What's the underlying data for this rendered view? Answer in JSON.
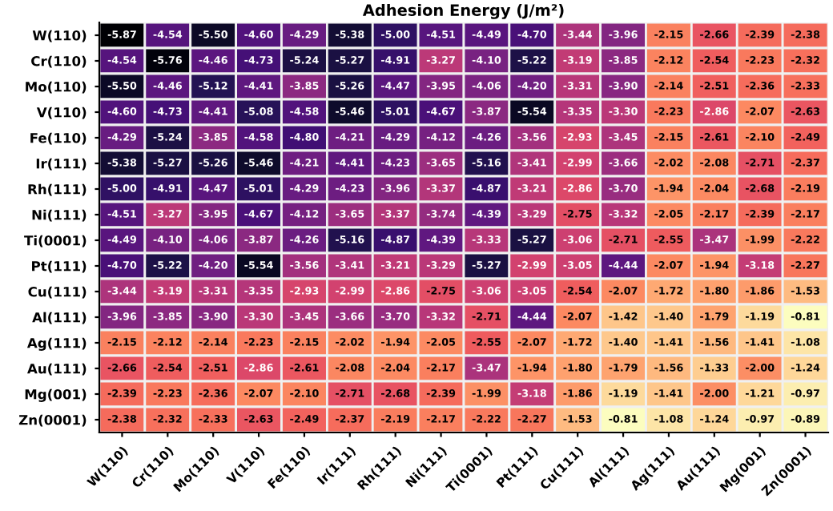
{
  "chart_data": {
    "type": "heatmap",
    "title": "Adhesion Energy (J/m²)",
    "categories": [
      "W(110)",
      "Cr(110)",
      "Mo(110)",
      "V(110)",
      "Fe(110)",
      "Ir(111)",
      "Rh(111)",
      "Ni(111)",
      "Ti(0001)",
      "Pt(111)",
      "Cu(111)",
      "Al(111)",
      "Ag(111)",
      "Au(111)",
      "Mg(001)",
      "Zn(0001)"
    ],
    "y_categories": [
      "W(110)",
      "Cr(110)",
      "Mo(110)",
      "V(110)",
      "Fe(110)",
      "Ir(111)",
      "Rh(111)",
      "Ni(111)",
      "Ti(0001)",
      "Pt(111)",
      "Cu(111)",
      "Al(111)",
      "Ag(111)",
      "Au(111)",
      "Mg(001)",
      "Zn(0001)"
    ],
    "cells": [
      [
        -5.87,
        -4.54,
        -5.5,
        -4.6,
        -4.29,
        -5.38,
        -5.0,
        -4.51,
        -4.49,
        -4.7,
        -3.44,
        -3.96,
        -2.15,
        -2.66,
        -2.39,
        -2.38
      ],
      [
        -4.54,
        -5.76,
        -4.46,
        -4.73,
        -5.24,
        -5.27,
        -4.91,
        -3.27,
        -4.1,
        -5.22,
        -3.19,
        -3.85,
        -2.12,
        -2.54,
        -2.23,
        -2.32
      ],
      [
        -5.5,
        -4.46,
        -5.12,
        -4.41,
        -3.85,
        -5.26,
        -4.47,
        -3.95,
        -4.06,
        -4.2,
        -3.31,
        -3.9,
        -2.14,
        -2.51,
        -2.36,
        -2.33
      ],
      [
        -4.6,
        -4.73,
        -4.41,
        -5.08,
        -4.58,
        -5.46,
        -5.01,
        -4.67,
        -3.87,
        -5.54,
        -3.35,
        -3.3,
        -2.23,
        -2.86,
        -2.07,
        -2.63
      ],
      [
        -4.29,
        -5.24,
        -3.85,
        -4.58,
        -4.8,
        -4.21,
        -4.29,
        -4.12,
        -4.26,
        -3.56,
        -2.93,
        -3.45,
        -2.15,
        -2.61,
        -2.1,
        -2.49
      ],
      [
        -5.38,
        -5.27,
        -5.26,
        -5.46,
        -4.21,
        -4.41,
        -4.23,
        -3.65,
        -5.16,
        -3.41,
        -2.99,
        -3.66,
        -2.02,
        -2.08,
        -2.71,
        -2.37
      ],
      [
        -5.0,
        -4.91,
        -4.47,
        -5.01,
        -4.29,
        -4.23,
        -3.96,
        -3.37,
        -4.87,
        -3.21,
        -2.86,
        -3.7,
        -1.94,
        -2.04,
        -2.68,
        -2.19
      ],
      [
        -4.51,
        -3.27,
        -3.95,
        -4.67,
        -4.12,
        -3.65,
        -3.37,
        -3.74,
        -4.39,
        -3.29,
        -2.75,
        -3.32,
        -2.05,
        -2.17,
        -2.39,
        -2.17
      ],
      [
        -4.49,
        -4.1,
        -4.06,
        -3.87,
        -4.26,
        -5.16,
        -4.87,
        -4.39,
        -3.33,
        -5.27,
        -3.06,
        -2.71,
        -2.55,
        -3.47,
        -1.99,
        -2.22
      ],
      [
        -4.7,
        -5.22,
        -4.2,
        -5.54,
        -3.56,
        -3.41,
        -3.21,
        -3.29,
        -5.27,
        -2.99,
        -3.05,
        -4.44,
        -2.07,
        -1.94,
        -3.18,
        -2.27
      ],
      [
        -3.44,
        -3.19,
        -3.31,
        -3.35,
        -2.93,
        -2.99,
        -2.86,
        -2.75,
        -3.06,
        -3.05,
        -2.54,
        -2.07,
        -1.72,
        -1.8,
        -1.86,
        -1.53
      ],
      [
        -3.96,
        -3.85,
        -3.9,
        -3.3,
        -3.45,
        -3.66,
        -3.7,
        -3.32,
        -2.71,
        -4.44,
        -2.07,
        -1.42,
        -1.4,
        -1.79,
        -1.19,
        -0.81
      ],
      [
        -2.15,
        -2.12,
        -2.14,
        -2.23,
        -2.15,
        -2.02,
        -1.94,
        -2.05,
        -2.55,
        -2.07,
        -1.72,
        -1.4,
        -1.41,
        -1.56,
        -1.41,
        -1.08
      ],
      [
        -2.66,
        -2.54,
        -2.51,
        -2.86,
        -2.61,
        -2.08,
        -2.04,
        -2.17,
        -3.47,
        -1.94,
        -1.8,
        -1.79,
        -1.56,
        -1.33,
        -2.0,
        -1.24
      ],
      [
        -2.39,
        -2.23,
        -2.36,
        -2.07,
        -2.1,
        -2.71,
        -2.68,
        -2.39,
        -1.99,
        -3.18,
        -1.86,
        -1.19,
        -1.41,
        -2.0,
        -1.21,
        -0.97
      ],
      [
        -2.38,
        -2.32,
        -2.33,
        -2.63,
        -2.49,
        -2.37,
        -2.19,
        -2.17,
        -2.22,
        -2.27,
        -1.53,
        -0.81,
        -1.08,
        -1.24,
        -0.97,
        -0.89
      ]
    ],
    "cell_labels": [
      [
        "-5.87",
        "-4.54",
        "-5.50",
        "-4.60",
        "-4.29",
        "-5.38",
        "-5.00",
        "-4.51",
        "-4.49",
        "-4.70",
        "-3.44",
        "-3.96",
        "-2.15",
        "-2.66",
        "-2.39",
        "-2.38"
      ],
      [
        "-4.54",
        "-5.76",
        "-4.46",
        "-4.73",
        "-5.24",
        "-5.27",
        "-4.91",
        "-3.27",
        "-4.10",
        "-5.22",
        "-3.19",
        "-3.85",
        "-2.12",
        "-2.54",
        "-2.23",
        "-2.32"
      ],
      [
        "-5.50",
        "-4.46",
        "-5.12",
        "-4.41",
        "-3.85",
        "-5.26",
        "-4.47",
        "-3.95",
        "-4.06",
        "-4.20",
        "-3.31",
        "-3.90",
        "-2.14",
        "-2.51",
        "-2.36",
        "-2.33"
      ],
      [
        "-4.60",
        "-4.73",
        "-4.41",
        "-5.08",
        "-4.58",
        "-5.46",
        "-5.01",
        "-4.67",
        "-3.87",
        "-5.54",
        "-3.35",
        "-3.30",
        "-2.23",
        "-2.86",
        "-2.07",
        "-2.63"
      ],
      [
        "-4.29",
        "-5.24",
        "-3.85",
        "-4.58",
        "-4.80",
        "-4.21",
        "-4.29",
        "-4.12",
        "-4.26",
        "-3.56",
        "-2.93",
        "-3.45",
        "-2.15",
        "-2.61",
        "-2.10",
        "-2.49"
      ],
      [
        "-5.38",
        "-5.27",
        "-5.26",
        "-5.46",
        "-4.21",
        "-4.41",
        "-4.23",
        "-3.65",
        "-5.16",
        "-3.41",
        "-2.99",
        "-3.66",
        "-2.02",
        "-2.08",
        "-2.71",
        "-2.37"
      ],
      [
        "-5.00",
        "-4.91",
        "-4.47",
        "-5.01",
        "-4.29",
        "-4.23",
        "-3.96",
        "-3.37",
        "-4.87",
        "-3.21",
        "-2.86",
        "-3.70",
        "-1.94",
        "-2.04",
        "-2.68",
        "-2.19"
      ],
      [
        "-4.51",
        "-3.27",
        "-3.95",
        "-4.67",
        "-4.12",
        "-3.65",
        "-3.37",
        "-3.74",
        "-4.39",
        "-3.29",
        "-2.75",
        "-3.32",
        "-2.05",
        "-2.17",
        "-2.39",
        "-2.17"
      ],
      [
        "-4.49",
        "-4.10",
        "-4.06",
        "-3.87",
        "-4.26",
        "-5.16",
        "-4.87",
        "-4.39",
        "-3.33",
        "-5.27",
        "-3.06",
        "-2.71",
        "-2.55",
        "-3.47",
        "-1.99",
        "-2.22"
      ],
      [
        "-4.70",
        "-5.22",
        "-4.20",
        "-5.54",
        "-3.56",
        "-3.41",
        "-3.21",
        "-3.29",
        "-5.27",
        "-2.99",
        "-3.05",
        "-4.44",
        "-2.07",
        "-1.94",
        "-3.18",
        "-2.27"
      ],
      [
        "-3.44",
        "-3.19",
        "-3.31",
        "-3.35",
        "-2.93",
        "-2.99",
        "-2.86",
        "-2.75",
        "-3.06",
        "-3.05",
        "-2.54",
        "-2.07",
        "-1.72",
        "-1.80",
        "-1.86",
        "-1.53"
      ],
      [
        "-3.96",
        "-3.85",
        "-3.90",
        "-3.30",
        "-3.45",
        "-3.66",
        "-3.70",
        "-3.32",
        "-2.71",
        "-4.44",
        "-2.07",
        "-1.42",
        "-1.40",
        "-1.79",
        "-1.19",
        "-0.81"
      ],
      [
        "-2.15",
        "-2.12",
        "-2.14",
        "-2.23",
        "-2.15",
        "-2.02",
        "-1.94",
        "-2.05",
        "-2.55",
        "-2.07",
        "-1.72",
        "-1.40",
        "-1.41",
        "-1.56",
        "-1.41",
        "-1.08"
      ],
      [
        "-2.66",
        "-2.54",
        "-2.51",
        "-2.86",
        "-2.61",
        "-2.08",
        "-2.04",
        "-2.17",
        "-3.47",
        "-1.94",
        "-1.80",
        "-1.79",
        "-1.56",
        "-1.33",
        "-2.00",
        "-1.24"
      ],
      [
        "-2.39",
        "-2.23",
        "-2.36",
        "-2.07",
        "-2.10",
        "-2.71",
        "-2.68",
        "-2.39",
        "-1.99",
        "-3.18",
        "-1.86",
        "-1.19",
        "-1.41",
        "-2.00",
        "-1.21",
        "-0.97"
      ],
      [
        "-2.38",
        "-2.32",
        "-2.33",
        "-2.63",
        "-2.49",
        "-2.37",
        "-2.19",
        "-2.17",
        "-2.22",
        "-2.27",
        "-1.53",
        "-0.81",
        "-1.08",
        "-1.24",
        "-0.97",
        "-0.89"
      ]
    ]
  }
}
